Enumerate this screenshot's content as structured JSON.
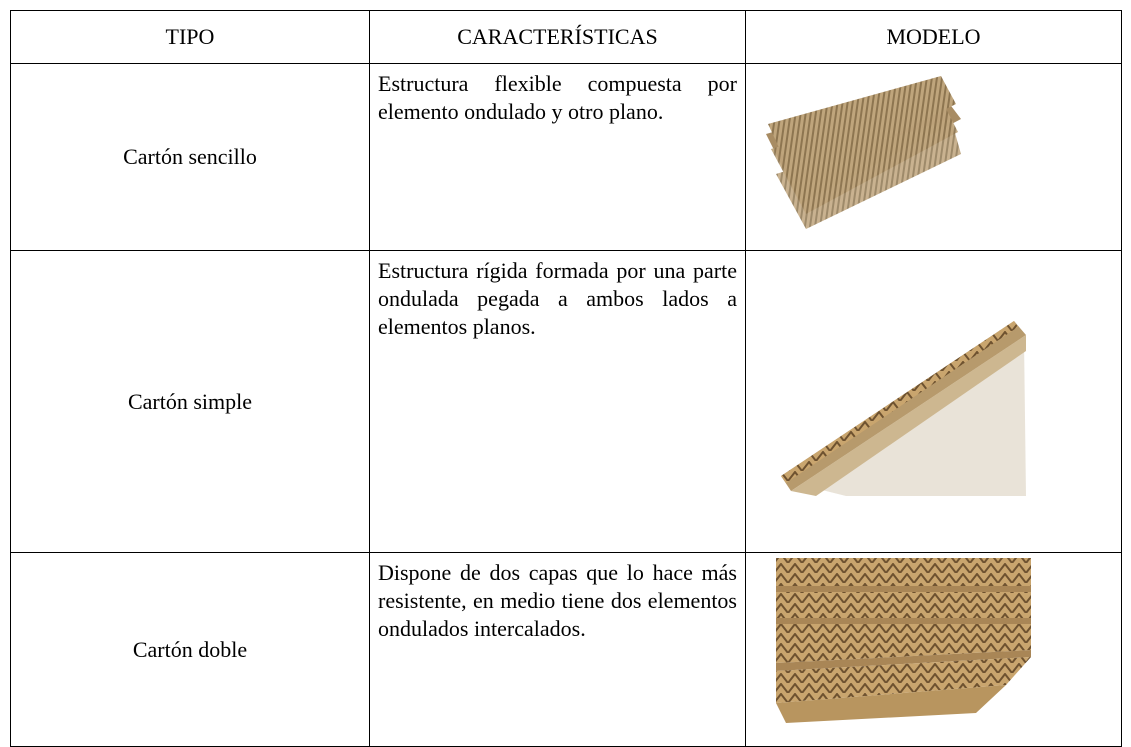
{
  "table": {
    "header": [
      "TIPO",
      "CARACTERÍSTICAS",
      "MODELO"
    ],
    "rows": [
      [
        "Cartón sencillo",
        "Estructura flexible compuesta por elemento ondulado y otro plano."
      ],
      [
        "Cartón simple",
        "Estructura rígida formada por una parte ondulada pegada a ambos lados a elementos planos."
      ],
      [
        "Cartón doble",
        "Dispone de dos capas que lo hace más resistente, en medio tiene dos elementos ondulados intercalados."
      ]
    ]
  }
}
